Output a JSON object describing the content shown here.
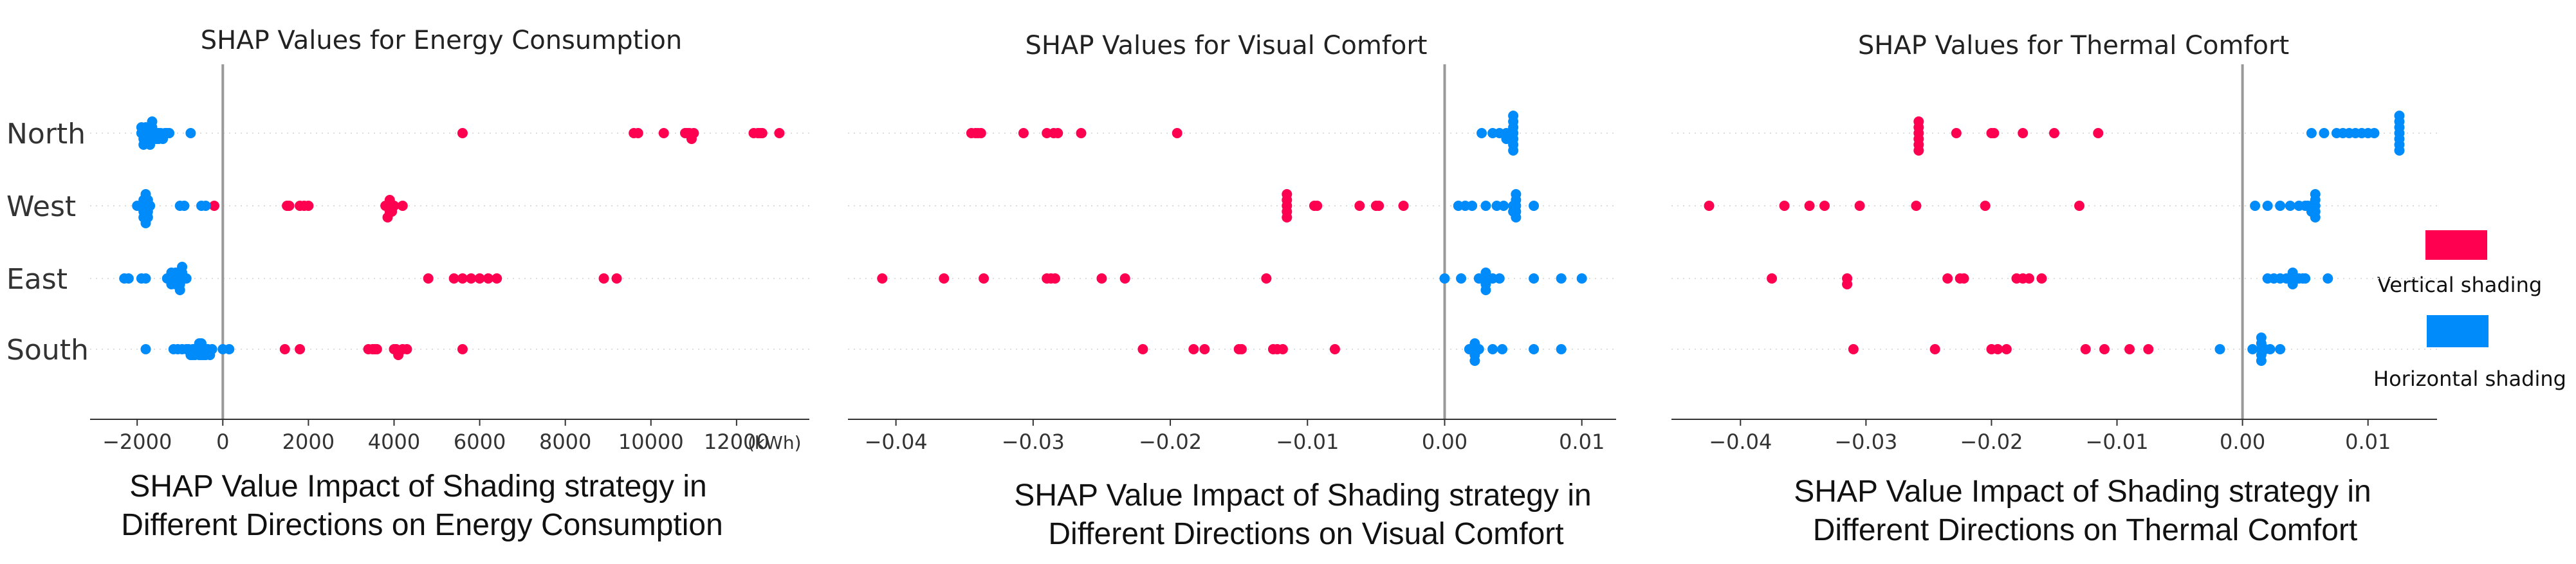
{
  "colors": {
    "vertical": "#ff0051",
    "horizontal": "#008bfb",
    "zero_line": "#999999",
    "grid": "#dddddd",
    "axis": "#333333"
  },
  "legend": {
    "vertical_label": "Vertical shading",
    "horizontal_label": "Horizontal shading"
  },
  "chart_data": [
    {
      "type": "scatter",
      "title": "SHAP Values for Energy Consumption",
      "caption_lines": [
        "SHAP Value Impact of Shading strategy in",
        "Different Directions on Energy Consumption"
      ],
      "unit_label": "(kWh)",
      "categories": [
        "North",
        "West",
        "East",
        "South"
      ],
      "xlim": [
        -3100,
        13700
      ],
      "ticks": [
        -2000,
        0,
        2000,
        4000,
        6000,
        8000,
        10000,
        12000
      ],
      "tick_labels": [
        "−2000",
        "0",
        "2000",
        "4000",
        "6000",
        "8000",
        "10000",
        "12000"
      ],
      "series": [
        {
          "name": "Vertical shading",
          "color_key": "vertical",
          "points": {
            "North": [
              5600,
              9600,
              9700,
              10300,
              10800,
              10850,
              10900,
              10950,
              11000,
              12400,
              12500,
              12550,
              12600,
              13000
            ],
            "West": [
              -200,
              1500,
              1550,
              1800,
              1900,
              2000,
              3800,
              3850,
              3900,
              3900,
              3950,
              4000,
              3850,
              3950,
              4200
            ],
            "East": [
              4800,
              5400,
              5600,
              5800,
              6000,
              6200,
              6400,
              8900,
              9200
            ],
            "South": [
              1450,
              1800,
              3400,
              3500,
              3550,
              3600,
              4000,
              4050,
              4100,
              4200,
              4300,
              5600
            ]
          }
        },
        {
          "name": "Horizontal shading",
          "color_key": "horizontal",
          "points": {
            "North": [
              -1900,
              -1850,
              -1800,
              -1800,
              -1750,
              -1750,
              -1700,
              -1700,
              -1650,
              -1600,
              -1550,
              -1500,
              -1450,
              -1400,
              -1350,
              -1300,
              -1250,
              -1900,
              -1850,
              -1800,
              -1700,
              -1650,
              -1550,
              -1500,
              -750
            ],
            "West": [
              -2000,
              -1900,
              -1850,
              -1850,
              -1800,
              -1800,
              -1800,
              -1750,
              -1750,
              -1700,
              -1800,
              -1850,
              -1800,
              -1750,
              -1750,
              -1800,
              -1000,
              -900,
              -500,
              -400
            ],
            "East": [
              -2300,
              -2200,
              -1900,
              -1800,
              -1300,
              -1250,
              -1200,
              -1150,
              -1100,
              -1100,
              -1050,
              -1050,
              -1000,
              -1000,
              -950,
              -900,
              -850,
              -1200,
              -1100,
              -1000,
              -950
            ],
            "South": [
              -1800,
              -1150,
              -1050,
              -950,
              -850,
              -800,
              -750,
              -700,
              -650,
              -600,
              -550,
              -500,
              -500,
              -450,
              -400,
              -350,
              -300,
              -700,
              -650,
              -550,
              -500,
              -450,
              -400,
              -250,
              0,
              150
            ]
          }
        }
      ]
    },
    {
      "type": "scatter",
      "title": "SHAP Values for Visual Comfort",
      "caption_lines": [
        "SHAP Value Impact of Shading strategy in",
        "Different Directions on Visual Comfort"
      ],
      "unit_label": "",
      "categories": [
        "North",
        "West",
        "East",
        "South"
      ],
      "xlim": [
        -0.0435,
        0.0125
      ],
      "ticks": [
        -0.04,
        -0.03,
        -0.02,
        -0.01,
        0.0,
        0.01
      ],
      "tick_labels": [
        "−0.04",
        "−0.03",
        "−0.02",
        "−0.01",
        "0.00",
        "0.01"
      ],
      "series": [
        {
          "name": "Vertical shading",
          "color_key": "vertical",
          "points": {
            "North": [
              -0.0345,
              -0.0342,
              -0.034,
              -0.0338,
              -0.0307,
              -0.029,
              -0.0285,
              -0.0282,
              -0.0265,
              -0.0195
            ],
            "West": [
              -0.0115,
              -0.0115,
              -0.0115,
              -0.0115,
              -0.0115,
              -0.0095,
              -0.0093,
              -0.0062,
              -0.005,
              -0.0048,
              -0.003
            ],
            "East": [
              -0.041,
              -0.0365,
              -0.0336,
              -0.029,
              -0.0287,
              -0.0284,
              -0.025,
              -0.0233,
              -0.013
            ],
            "South": [
              -0.022,
              -0.0183,
              -0.0175,
              -0.015,
              -0.0148,
              -0.0125,
              -0.0122,
              -0.0118,
              -0.008
            ]
          }
        },
        {
          "name": "Horizontal shading",
          "color_key": "horizontal",
          "points": {
            "North": [
              0.0027,
              0.0035,
              0.004,
              0.0045,
              0.0048,
              0.005,
              0.005,
              0.005,
              0.005,
              0.005,
              0.005,
              0.005,
              0.0048,
              0.0045
            ],
            "West": [
              0.001,
              0.0015,
              0.002,
              0.003,
              0.0038,
              0.0043,
              0.005,
              0.0052,
              0.0052,
              0.0052,
              0.0052,
              0.0052,
              0.005,
              0.0065
            ],
            "East": [
              0.0,
              0.0012,
              0.0025,
              0.0028,
              0.003,
              0.003,
              0.003,
              0.003,
              0.0032,
              0.0035,
              0.004,
              0.0065,
              0.0085,
              0.01
            ],
            "South": [
              0.0018,
              0.002,
              0.0022,
              0.0022,
              0.0022,
              0.0022,
              0.0025,
              0.0035,
              0.0042,
              0.0065,
              0.0085
            ]
          }
        }
      ]
    },
    {
      "type": "scatter",
      "title": "SHAP Values for Thermal Comfort",
      "caption_lines": [
        "SHAP Value Impact of Shading strategy in",
        "Different Directions on Thermal Comfort"
      ],
      "unit_label": "",
      "categories": [
        "North",
        "West",
        "East",
        "South"
      ],
      "xlim": [
        -0.0455,
        0.0155
      ],
      "ticks": [
        -0.04,
        -0.03,
        -0.02,
        -0.01,
        0.0,
        0.01
      ],
      "tick_labels": [
        "−0.04",
        "−0.03",
        "−0.02",
        "−0.01",
        "0.00",
        "0.01"
      ],
      "series": [
        {
          "name": "Vertical shading",
          "color_key": "vertical",
          "points": {
            "North": [
              -0.0258,
              -0.0258,
              -0.0258,
              -0.0258,
              -0.0258,
              -0.0258,
              -0.0228,
              -0.02,
              -0.0198,
              -0.0175,
              -0.015,
              -0.0115
            ],
            "West": [
              -0.0425,
              -0.0365,
              -0.0345,
              -0.0333,
              -0.0305,
              -0.026,
              -0.0205,
              -0.013
            ],
            "East": [
              -0.0375,
              -0.0315,
              -0.0315,
              -0.0235,
              -0.0225,
              -0.0222,
              -0.018,
              -0.0175,
              -0.017,
              -0.016
            ],
            "South": [
              -0.031,
              -0.0245,
              -0.02,
              -0.0195,
              -0.0188,
              -0.0125,
              -0.011,
              -0.009,
              -0.0075
            ]
          }
        },
        {
          "name": "Horizontal shading",
          "color_key": "horizontal",
          "points": {
            "North": [
              0.0055,
              0.0065,
              0.0075,
              0.008,
              0.0085,
              0.009,
              0.0095,
              0.01,
              0.0105,
              0.0125,
              0.0125,
              0.0125,
              0.0125,
              0.0125,
              0.0125,
              0.0125
            ],
            "West": [
              0.001,
              0.002,
              0.003,
              0.0038,
              0.0045,
              0.005,
              0.0052,
              0.0055,
              0.0055,
              0.0058,
              0.0058,
              0.0058,
              0.0058,
              0.0058
            ],
            "East": [
              0.002,
              0.0025,
              0.003,
              0.0035,
              0.0038,
              0.004,
              0.004,
              0.004,
              0.0042,
              0.0045,
              0.0048,
              0.005,
              0.0068
            ],
            "South": [
              -0.0018,
              0.0008,
              0.0015,
              0.0015,
              0.0015,
              0.0015,
              0.0015,
              0.0018,
              0.0022,
              0.003
            ]
          }
        }
      ]
    }
  ]
}
